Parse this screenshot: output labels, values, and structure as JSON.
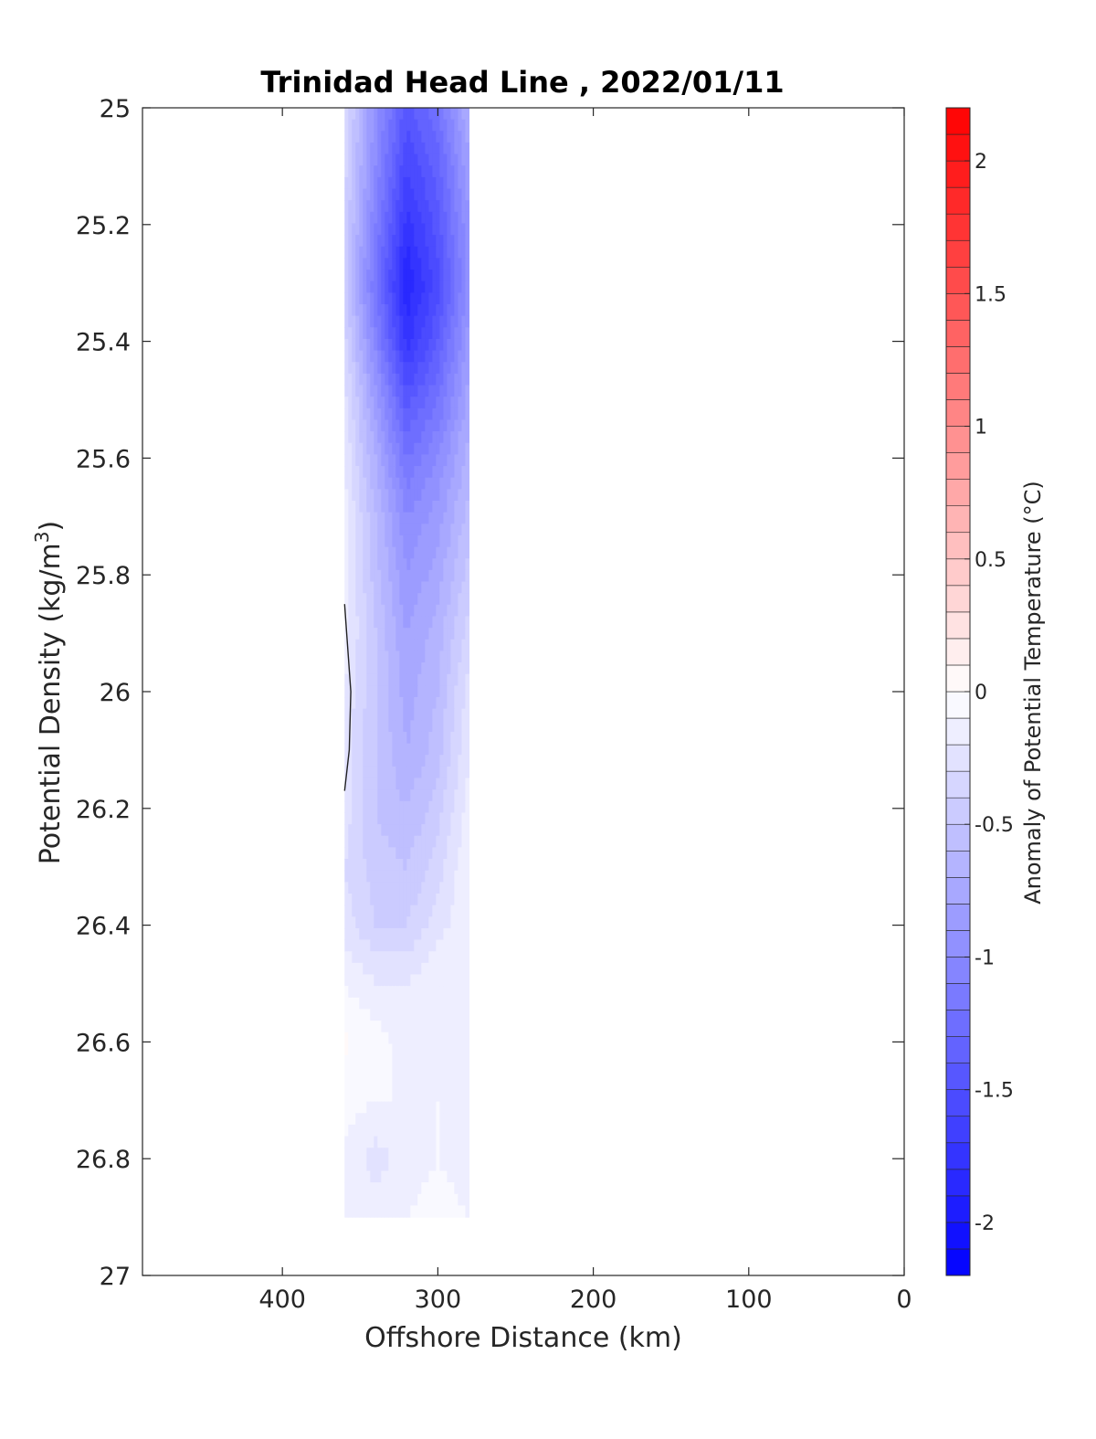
{
  "chart_data": {
    "type": "heatmap",
    "subtype": "filled contour section",
    "title": "Trinidad Head Line , 2022/01/11",
    "xlabel": "Offshore Distance (km)",
    "ylabel": "Potential Density (kg/m3)",
    "ylabel_parts": {
      "main": "Potential Density (kg/m",
      "superscript": "3",
      "tail": ")"
    },
    "colorbar_label": "Anomaly of Potential Temperature (°C)",
    "x_reversed": true,
    "y_reversed": true,
    "xlim": [
      490,
      0
    ],
    "ylim": [
      25,
      27
    ],
    "x_ticks": [
      400,
      300,
      200,
      100,
      0
    ],
    "x_tick_labels": [
      "400",
      "300",
      "200",
      "100",
      "0"
    ],
    "y_ticks": [
      25,
      25.2,
      25.4,
      25.6,
      25.8,
      26,
      26.2,
      26.4,
      26.6,
      26.8,
      27
    ],
    "y_tick_labels": [
      "25",
      "25.2",
      "25.4",
      "25.6",
      "25.8",
      "26",
      "26.2",
      "26.4",
      "26.6",
      "26.8",
      "27"
    ],
    "colorbar": {
      "range": [
        -2.2,
        2.2
      ],
      "ticks": [
        -2,
        -1.5,
        -1,
        -0.5,
        0,
        0.5,
        1,
        1.5,
        2
      ],
      "tick_labels": [
        "-2",
        "-1.5",
        "-1",
        "-0.5",
        "0",
        "0.5",
        "1",
        "1.5",
        "2"
      ],
      "levels": 44,
      "negative_color": "#0000ff",
      "zero_color": "#ffffff",
      "positive_color": "#ff0000"
    },
    "grid": false,
    "stations_km": [
      360,
      340,
      320,
      300,
      280
    ],
    "density_levels": [
      25.0,
      25.1,
      25.2,
      25.3,
      25.4,
      25.5,
      25.6,
      25.7,
      25.8,
      25.9,
      26.0,
      26.1,
      26.2,
      26.3,
      26.4,
      26.5,
      26.6,
      26.7,
      26.8,
      26.9
    ],
    "anomaly": [
      [
        -0.3,
        -0.95,
        -1.45,
        -1.2,
        -0.7
      ],
      [
        -0.35,
        -1.0,
        -1.6,
        -1.35,
        -0.8
      ],
      [
        -0.4,
        -1.1,
        -1.75,
        -1.45,
        -0.9
      ],
      [
        -0.45,
        -1.2,
        -1.9,
        -1.55,
        -0.95
      ],
      [
        -0.35,
        -1.05,
        -1.75,
        -1.4,
        -0.85
      ],
      [
        -0.25,
        -0.85,
        -1.45,
        -1.2,
        -0.75
      ],
      [
        -0.2,
        -0.7,
        -1.2,
        -1.0,
        -0.65
      ],
      [
        -0.15,
        -0.6,
        -1.0,
        -0.85,
        -0.55
      ],
      [
        -0.15,
        -0.55,
        -0.9,
        -0.75,
        -0.45
      ],
      [
        -0.15,
        -0.5,
        -0.8,
        -0.65,
        -0.35
      ],
      [
        -0.2,
        -0.5,
        -0.75,
        -0.6,
        -0.25
      ],
      [
        -0.25,
        -0.5,
        -0.7,
        -0.55,
        -0.2
      ],
      [
        -0.25,
        -0.5,
        -0.6,
        -0.45,
        -0.15
      ],
      [
        -0.3,
        -0.45,
        -0.5,
        -0.35,
        -0.1
      ],
      [
        -0.25,
        -0.4,
        -0.4,
        -0.25,
        -0.1
      ],
      [
        -0.1,
        -0.2,
        -0.2,
        -0.1,
        -0.15
      ],
      [
        0.02,
        -0.05,
        -0.15,
        -0.12,
        -0.15
      ],
      [
        -0.05,
        -0.1,
        -0.1,
        -0.1,
        -0.15
      ],
      [
        -0.12,
        -0.25,
        -0.15,
        -0.1,
        -0.15
      ],
      [
        -0.15,
        -0.15,
        -0.1,
        -0.05,
        -0.1
      ]
    ],
    "contour_line": {
      "value": 0,
      "points": [
        [
          360,
          25.85
        ],
        [
          356,
          26.0
        ],
        [
          357,
          26.1
        ],
        [
          360,
          26.17
        ]
      ]
    }
  }
}
